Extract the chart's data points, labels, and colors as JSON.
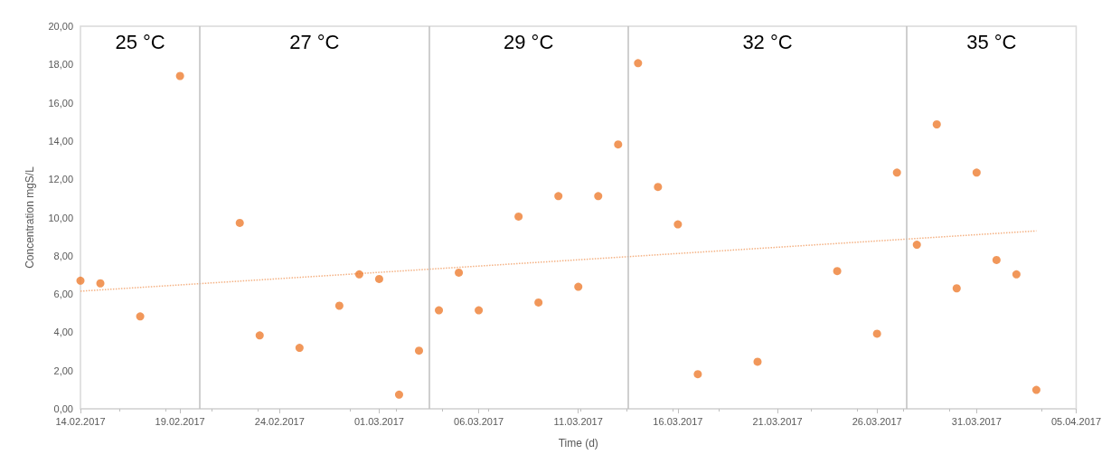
{
  "chart_data": {
    "type": "scatter",
    "xlabel": "Time (d)",
    "ylabel": "Concentration mgS/L",
    "grid": false,
    "x": [
      "2017-02-14",
      "2017-02-15",
      "2017-02-17",
      "2017-02-19",
      "2017-02-22",
      "2017-02-23",
      "2017-02-25",
      "2017-02-27",
      "2017-02-28",
      "2017-03-01",
      "2017-03-02",
      "2017-03-03",
      "2017-03-04",
      "2017-03-05",
      "2017-03-06",
      "2017-03-08",
      "2017-03-09",
      "2017-03-10",
      "2017-03-11",
      "2017-03-12",
      "2017-03-13",
      "2017-03-14",
      "2017-03-15",
      "2017-03-16",
      "2017-03-17",
      "2017-03-20",
      "2017-03-24",
      "2017-03-26",
      "2017-03-27",
      "2017-03-28",
      "2017-03-29",
      "2017-03-30",
      "2017-03-31",
      "2017-04-01",
      "2017-04-02",
      "2017-04-03"
    ],
    "series": [
      {
        "color": "#ed7d31",
        "marker": "circle",
        "values": [
          6.7,
          6.56,
          4.83,
          17.4,
          9.72,
          3.84,
          3.19,
          5.39,
          7.03,
          6.79,
          0.74,
          3.04,
          5.15,
          7.12,
          5.15,
          10.05,
          5.56,
          11.12,
          6.38,
          11.12,
          13.82,
          18.07,
          11.6,
          9.64,
          1.81,
          2.46,
          7.2,
          3.93,
          12.35,
          8.58,
          14.87,
          6.3,
          12.35,
          7.78,
          7.03,
          0.99
        ]
      },
      {
        "type": "line",
        "color": "#f4b183",
        "line_style": "dotted",
        "x": [
          "2017-02-14",
          "2017-04-03"
        ],
        "values": [
          6.15,
          9.3
        ]
      }
    ],
    "xlim": [
      "2017-02-14",
      "2017-04-05"
    ],
    "xticks": [
      {
        "value": "2017-02-14",
        "label": "14.02.2017"
      },
      {
        "value": "2017-02-19",
        "label": "19.02.2017"
      },
      {
        "value": "2017-02-24",
        "label": "24.02.2017"
      },
      {
        "value": "2017-03-01",
        "label": "01.03.2017"
      },
      {
        "value": "2017-03-06",
        "label": "06.03.2017"
      },
      {
        "value": "2017-03-11",
        "label": "11.03.2017"
      },
      {
        "value": "2017-03-16",
        "label": "16.03.2017"
      },
      {
        "value": "2017-03-21",
        "label": "21.03.2017"
      },
      {
        "value": "2017-03-26",
        "label": "26.03.2017"
      },
      {
        "value": "2017-03-31",
        "label": "31.03.2017"
      },
      {
        "value": "2017-04-05",
        "label": "05.04.2017"
      }
    ],
    "ylim": [
      0,
      20
    ],
    "yticks": [
      {
        "value": 0,
        "label": "0,00"
      },
      {
        "value": 2,
        "label": "2,00"
      },
      {
        "value": 4,
        "label": "4,00"
      },
      {
        "value": 6,
        "label": "6,00"
      },
      {
        "value": 8,
        "label": "8,00"
      },
      {
        "value": 10,
        "label": "10,00"
      },
      {
        "value": 12,
        "label": "12,00"
      },
      {
        "value": 14,
        "label": "14,00"
      },
      {
        "value": 16,
        "label": "16,00"
      },
      {
        "value": 18,
        "label": "18,00"
      },
      {
        "value": 20,
        "label": "20,00"
      }
    ],
    "ref_lines": [
      {
        "axis": "x",
        "value": "2017-02-20",
        "color": "#bfbfbf"
      },
      {
        "axis": "x",
        "value": "2017-03-03T12:00",
        "color": "#bfbfbf"
      },
      {
        "axis": "x",
        "value": "2017-03-13T12:00",
        "color": "#bfbfbf"
      },
      {
        "axis": "x",
        "value": "2017-03-27T12:00",
        "color": "#bfbfbf"
      }
    ],
    "annotations": [
      "25 °C",
      "27 °C",
      "29 °C",
      "32 °C",
      "35 °C"
    ]
  }
}
